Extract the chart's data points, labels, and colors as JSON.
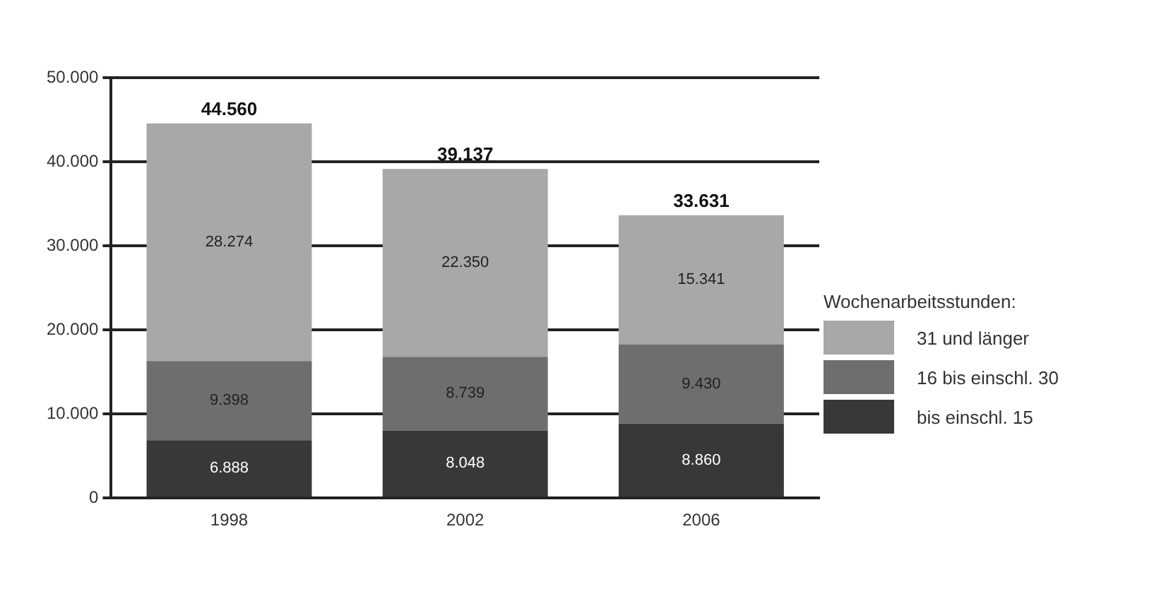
{
  "chart_data": {
    "type": "bar",
    "stacked": true,
    "categories": [
      "1998",
      "2002",
      "2006"
    ],
    "series": [
      {
        "name": "bis einschl. 15",
        "color": "#383838",
        "values": [
          6888,
          8048,
          8860
        ],
        "value_labels": [
          "6.888",
          "8.048",
          "8.860"
        ]
      },
      {
        "name": "16 bis einschl. 30",
        "color": "#6e6e6e",
        "values": [
          9398,
          8739,
          9430
        ],
        "value_labels": [
          "9.398",
          "8.739",
          "9.430"
        ]
      },
      {
        "name": "31 und länger",
        "color": "#a8a8a8",
        "values": [
          28274,
          22350,
          15341
        ],
        "value_labels": [
          "28.274",
          "22.350",
          "15.341"
        ]
      }
    ],
    "totals": [
      "44.560",
      "39.137",
      "33.631"
    ],
    "ylim": [
      0,
      50000
    ],
    "yticks": [
      {
        "value": 0,
        "label": "0"
      },
      {
        "value": 10000,
        "label": "10.000"
      },
      {
        "value": 20000,
        "label": "20.000"
      },
      {
        "value": 30000,
        "label": "30.000"
      },
      {
        "value": 40000,
        "label": "40.000"
      },
      {
        "value": 50000,
        "label": "50.000"
      }
    ],
    "grid": "y",
    "legend": "right",
    "legend_title": "Wochenarbeitsstunden:"
  }
}
